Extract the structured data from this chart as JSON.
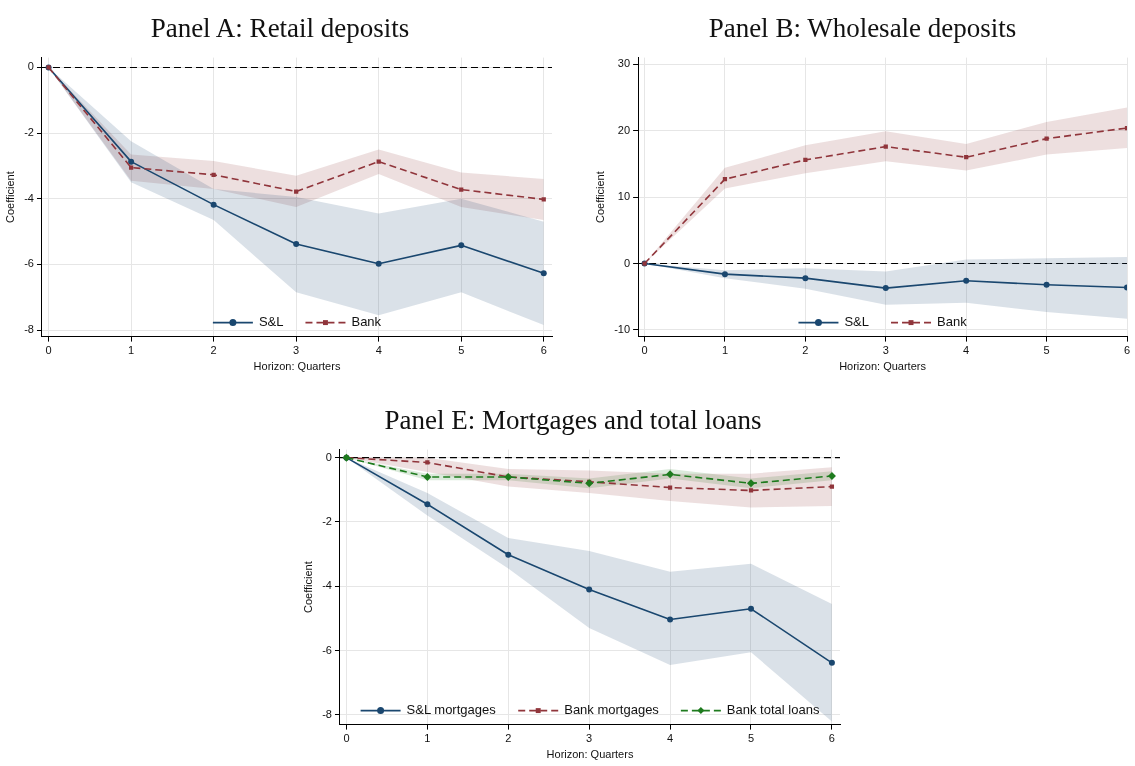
{
  "chart_data": [
    {
      "type": "line",
      "title": "Panel A: Retail deposits",
      "xlabel": "Horizon: Quarters",
      "ylabel": "Coefficient",
      "x": [
        0,
        1,
        2,
        3,
        4,
        5,
        6
      ],
      "xlim": [
        -0.08,
        6.1
      ],
      "xticks": [
        0,
        1,
        2,
        3,
        4,
        5,
        6
      ],
      "ylim": [
        -8.2,
        0.3
      ],
      "yticks": [
        -8,
        -6,
        -4,
        -2,
        0
      ],
      "grid": true,
      "legend": "bottom",
      "ref_lines": [
        {
          "axis": "y",
          "value": 0,
          "color": "#000000",
          "line_style": "dashed"
        }
      ],
      "series": [
        {
          "name": "S&L",
          "color": "#1a476f",
          "marker": "circle",
          "line_style": "solid",
          "values": [
            0,
            -2.87,
            -4.18,
            -5.38,
            -5.98,
            -5.42,
            -6.27
          ],
          "lower": [
            0,
            -3.5,
            -4.65,
            -6.85,
            -7.55,
            -6.85,
            -7.85
          ],
          "upper": [
            0,
            -2.25,
            -3.7,
            -3.95,
            -4.45,
            -4.0,
            -4.7
          ]
        },
        {
          "name": "Bank",
          "color": "#90353b",
          "marker": "square",
          "line_style": "dashed",
          "values": [
            0,
            -3.05,
            -3.27,
            -3.78,
            -2.87,
            -3.72,
            -4.02
          ],
          "lower": [
            0,
            -3.45,
            -3.7,
            -4.25,
            -3.25,
            -4.25,
            -4.65
          ],
          "upper": [
            0,
            -2.65,
            -2.85,
            -3.3,
            -2.5,
            -3.2,
            -3.4
          ]
        }
      ]
    },
    {
      "type": "line",
      "title": "Panel B: Wholesale deposits",
      "xlabel": "Horizon: Quarters",
      "ylabel": "Coefficient",
      "x": [
        0,
        1,
        2,
        3,
        4,
        5,
        6
      ],
      "xlim": [
        -0.08,
        6
      ],
      "xticks": [
        0,
        1,
        2,
        3,
        4,
        5,
        6
      ],
      "ylim": [
        -11,
        31
      ],
      "yticks": [
        -10,
        0,
        10,
        20,
        30
      ],
      "grid": true,
      "legend": "bottom",
      "ref_lines": [
        {
          "axis": "y",
          "value": 0,
          "color": "#000000",
          "line_style": "dashed"
        }
      ],
      "series": [
        {
          "name": "S&L",
          "color": "#1a476f",
          "marker": "circle",
          "line_style": "solid",
          "values": [
            0,
            -1.6,
            -2.2,
            -3.7,
            -2.6,
            -3.2,
            -3.6
          ],
          "lower": [
            0,
            -2.2,
            -3.8,
            -6.2,
            -5.9,
            -7.3,
            -8.3
          ],
          "upper": [
            0,
            -1.0,
            -0.7,
            -1.2,
            0.6,
            0.8,
            1.0
          ]
        },
        {
          "name": "Bank",
          "color": "#90353b",
          "marker": "square",
          "line_style": "dashed",
          "values": [
            0,
            12.7,
            15.6,
            17.6,
            16.0,
            18.8,
            20.4
          ],
          "lower": [
            0,
            11.3,
            13.6,
            15.4,
            14.0,
            16.4,
            17.4
          ],
          "upper": [
            0,
            14.4,
            17.8,
            19.9,
            18.0,
            21.3,
            23.5
          ]
        }
      ]
    },
    {
      "type": "line",
      "title": "Panel E: Mortgages and total loans",
      "xlabel": "Horizon: Quarters",
      "ylabel": "Coefficient",
      "x": [
        0,
        1,
        2,
        3,
        4,
        5,
        6
      ],
      "xlim": [
        -0.08,
        6.1
      ],
      "xticks": [
        0,
        1,
        2,
        3,
        4,
        5,
        6
      ],
      "ylim": [
        -8.3,
        0.25
      ],
      "yticks": [
        -8,
        -6,
        -4,
        -2,
        0
      ],
      "grid": true,
      "legend": "bottom",
      "ref_lines": [
        {
          "axis": "y",
          "value": 0,
          "color": "#000000",
          "line_style": "dashed"
        }
      ],
      "series": [
        {
          "name": "S&L mortgages",
          "color": "#1a476f",
          "marker": "circle",
          "line_style": "solid",
          "values": [
            0,
            -1.45,
            -3.02,
            -4.1,
            -5.03,
            -4.7,
            -6.38
          ],
          "lower": [
            0,
            -1.8,
            -3.45,
            -5.3,
            -6.45,
            -6.05,
            -8.2
          ],
          "upper": [
            0,
            -1.1,
            -2.5,
            -2.9,
            -3.55,
            -3.3,
            -4.55
          ]
        },
        {
          "name": "Bank mortgages",
          "color": "#90353b",
          "marker": "square",
          "line_style": "dashed",
          "values": [
            0,
            -0.15,
            -0.6,
            -0.75,
            -0.93,
            -1.02,
            -0.9
          ],
          "lower": [
            0,
            -0.45,
            -0.9,
            -1.1,
            -1.35,
            -1.55,
            -1.5
          ],
          "upper": [
            0,
            0.0,
            -0.35,
            -0.4,
            -0.5,
            -0.5,
            -0.3
          ]
        },
        {
          "name": "Bank total loans",
          "color": "#1e7b1e",
          "marker": "diamond",
          "line_style": "dashed",
          "values": [
            0,
            -0.6,
            -0.6,
            -0.8,
            -0.52,
            -0.8,
            -0.57
          ],
          "lower": [
            0,
            -0.7,
            -0.7,
            -0.95,
            -0.65,
            -0.95,
            -0.7
          ],
          "upper": [
            0,
            -0.5,
            -0.5,
            -0.65,
            -0.35,
            -0.65,
            -0.42
          ]
        }
      ]
    }
  ]
}
